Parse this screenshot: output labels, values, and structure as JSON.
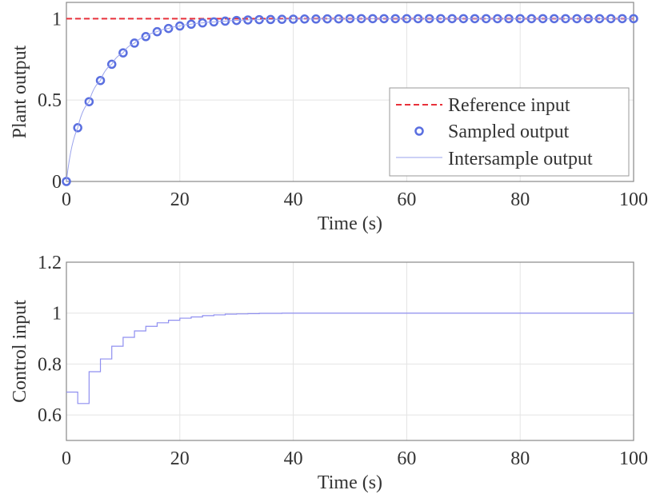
{
  "colors": {
    "reference": "#e8303a",
    "sampled": "#5a6fe0",
    "intersample": "#9aa3ec",
    "control": "#8f8ff0",
    "grid": "#e4e4e4",
    "axis": "#888888"
  },
  "chart_data": [
    {
      "type": "line",
      "title": "",
      "xlabel": "Time (s)",
      "ylabel": "Plant output",
      "xlim": [
        0,
        100
      ],
      "ylim": [
        0,
        1.1
      ],
      "xticks": [
        0,
        20,
        40,
        60,
        80,
        100
      ],
      "xtick_labels": [
        "0",
        "20",
        "40",
        "60",
        "80",
        "100"
      ],
      "yticks": [
        0,
        0.5,
        1
      ],
      "ytick_labels": [
        "0",
        "0.5",
        "1"
      ],
      "grid": true,
      "legend_position": "bottom-right",
      "x": [
        0,
        2,
        4,
        6,
        8,
        10,
        12,
        14,
        16,
        18,
        20,
        22,
        24,
        26,
        28,
        30,
        32,
        34,
        36,
        38,
        40,
        42,
        44,
        46,
        48,
        50,
        52,
        54,
        56,
        58,
        60,
        62,
        64,
        66,
        68,
        70,
        72,
        74,
        76,
        78,
        80,
        82,
        84,
        86,
        88,
        90,
        92,
        94,
        96,
        98,
        100
      ],
      "series": [
        {
          "name": "Reference input",
          "style": "dashed",
          "values": [
            1,
            1,
            1,
            1,
            1,
            1,
            1,
            1,
            1,
            1,
            1,
            1,
            1,
            1,
            1,
            1,
            1,
            1,
            1,
            1,
            1,
            1,
            1,
            1,
            1,
            1,
            1,
            1,
            1,
            1,
            1,
            1,
            1,
            1,
            1,
            1,
            1,
            1,
            1,
            1,
            1,
            1,
            1,
            1,
            1,
            1,
            1,
            1,
            1,
            1,
            1
          ]
        },
        {
          "name": "Sampled output",
          "style": "markers",
          "values": [
            0,
            0.33,
            0.49,
            0.62,
            0.72,
            0.79,
            0.85,
            0.89,
            0.92,
            0.94,
            0.955,
            0.966,
            0.974,
            0.98,
            0.985,
            0.989,
            0.992,
            0.994,
            0.995,
            0.996,
            0.997,
            0.998,
            0.998,
            0.999,
            0.999,
            1,
            1,
            1,
            1,
            1,
            1,
            1,
            1,
            1,
            1,
            1,
            1,
            1,
            1,
            1,
            1,
            1,
            1,
            1,
            1,
            1,
            1,
            1,
            1,
            1,
            1
          ]
        },
        {
          "name": "Intersample output",
          "style": "line",
          "values": [
            0,
            0.33,
            0.49,
            0.62,
            0.72,
            0.79,
            0.85,
            0.89,
            0.92,
            0.94,
            0.955,
            0.966,
            0.974,
            0.98,
            0.985,
            0.989,
            0.992,
            0.994,
            0.995,
            0.996,
            0.997,
            0.998,
            0.998,
            0.999,
            0.999,
            1,
            1,
            1,
            1,
            1,
            1,
            1,
            1,
            1,
            1,
            1,
            1,
            1,
            1,
            1,
            1,
            1,
            1,
            1,
            1,
            1,
            1,
            1,
            1,
            1,
            1
          ]
        }
      ]
    },
    {
      "type": "line",
      "title": "",
      "xlabel": "Time (s)",
      "ylabel": "Control input",
      "xlim": [
        0,
        100
      ],
      "ylim": [
        0.5,
        1.2
      ],
      "xticks": [
        0,
        20,
        40,
        60,
        80,
        100
      ],
      "xtick_labels": [
        "0",
        "20",
        "40",
        "60",
        "80",
        "100"
      ],
      "yticks": [
        0.6,
        0.8,
        1,
        1.2
      ],
      "ytick_labels": [
        "0.6",
        "0.8",
        "1",
        "1.2"
      ],
      "grid": true,
      "x": [
        0,
        2,
        4,
        6,
        8,
        10,
        12,
        14,
        16,
        18,
        20,
        22,
        24,
        26,
        28,
        30,
        32,
        34,
        36,
        38,
        40,
        42,
        44,
        46,
        48,
        50,
        52,
        54,
        56,
        58,
        60,
        62,
        64,
        66,
        68,
        70,
        72,
        74,
        76,
        78,
        80,
        82,
        84,
        86,
        88,
        90,
        92,
        94,
        96,
        98,
        100
      ],
      "series": [
        {
          "name": "Control input",
          "style": "stairs",
          "values": [
            0.69,
            0.645,
            0.77,
            0.82,
            0.87,
            0.905,
            0.93,
            0.948,
            0.962,
            0.972,
            0.98,
            0.985,
            0.99,
            0.993,
            0.996,
            0.997,
            0.998,
            0.999,
            0.999,
            1,
            1,
            1,
            1,
            1,
            1,
            1,
            1,
            1,
            1,
            1,
            1,
            1,
            1,
            1,
            1,
            1,
            1,
            1,
            1,
            1,
            1,
            1,
            1,
            1,
            1,
            1,
            1,
            1,
            1,
            1,
            1
          ]
        }
      ]
    }
  ]
}
